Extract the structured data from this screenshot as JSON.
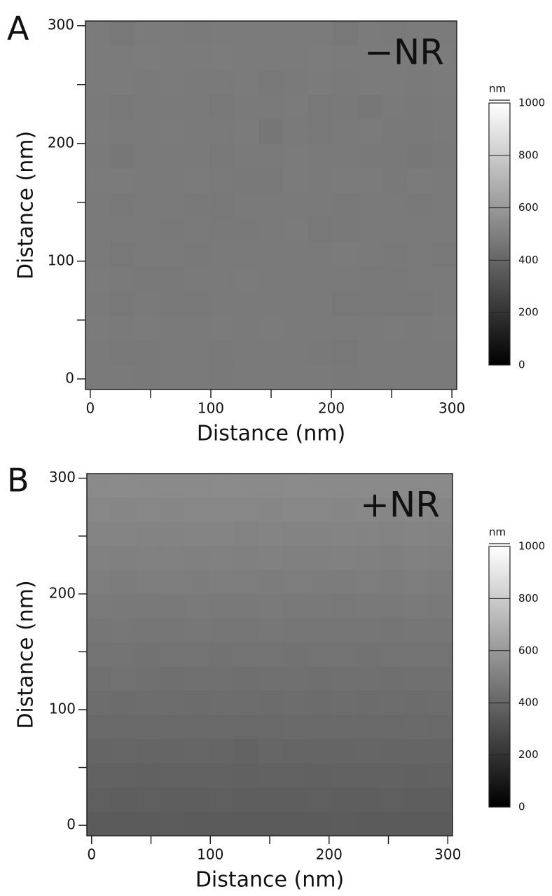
{
  "chart_data": [
    {
      "type": "heatmap",
      "panel_label": "A",
      "annotation": "−NR",
      "xlabel": "Distance (nm)",
      "ylabel": "Distance (nm)",
      "xlim": [
        -4,
        304
      ],
      "ylim": [
        -9,
        304
      ],
      "xticks": [
        0,
        100,
        200,
        300
      ],
      "yticks": [
        0,
        100,
        200,
        300
      ],
      "xminor_ticks": [
        50,
        150,
        250
      ],
      "yminor_ticks": [
        50,
        150,
        250
      ],
      "colorbar_label": "nm",
      "zlim": [
        0,
        1000
      ],
      "zticks": [
        0,
        200,
        400,
        600,
        800,
        1000
      ],
      "z": [
        [
          482,
          470,
          484,
          482,
          480,
          483,
          482,
          481,
          484,
          482,
          472,
          482,
          480,
          482,
          483
        ],
        [
          484,
          482,
          486,
          483,
          482,
          485,
          484,
          482,
          483,
          486,
          484,
          482,
          484,
          483,
          485
        ],
        [
          482,
          481,
          480,
          482,
          478,
          480,
          482,
          476,
          480,
          482,
          480,
          481,
          482,
          480,
          481
        ],
        [
          480,
          470,
          478,
          480,
          480,
          472,
          478,
          480,
          482,
          470,
          474,
          468,
          480,
          476,
          478
        ],
        [
          482,
          480,
          478,
          482,
          480,
          480,
          482,
          462,
          478,
          474,
          480,
          482,
          470,
          472,
          480
        ],
        [
          480,
          468,
          480,
          480,
          478,
          470,
          480,
          480,
          482,
          478,
          480,
          476,
          470,
          468,
          476
        ],
        [
          484,
          482,
          480,
          478,
          482,
          480,
          474,
          474,
          482,
          480,
          481,
          482,
          476,
          484,
          480
        ],
        [
          478,
          476,
          478,
          480,
          476,
          472,
          478,
          480,
          480,
          478,
          476,
          478,
          480,
          476,
          478
        ],
        [
          480,
          478,
          480,
          474,
          478,
          474,
          476,
          480,
          482,
          472,
          476,
          478,
          480,
          478,
          480
        ],
        [
          478,
          470,
          478,
          480,
          476,
          478,
          480,
          480,
          478,
          480,
          482,
          480,
          474,
          478,
          472
        ],
        [
          482,
          480,
          476,
          474,
          478,
          480,
          482,
          480,
          480,
          478,
          480,
          476,
          472,
          478,
          480
        ],
        [
          480,
          472,
          478,
          476,
          474,
          480,
          480,
          478,
          480,
          480,
          472,
          476,
          470,
          470,
          478
        ],
        [
          482,
          480,
          482,
          480,
          478,
          482,
          480,
          482,
          480,
          478,
          480,
          480,
          482,
          480,
          482
        ],
        [
          480,
          476,
          474,
          478,
          480,
          476,
          480,
          478,
          480,
          476,
          472,
          478,
          480,
          478,
          480
        ],
        [
          478,
          480,
          476,
          480,
          478,
          474,
          480,
          478,
          480,
          478,
          474,
          478,
          480,
          478,
          478
        ]
      ]
    },
    {
      "type": "heatmap",
      "panel_label": "B",
      "annotation": "+NR",
      "xlabel": "Distance (nm)",
      "ylabel": "Distance (nm)",
      "xlim": [
        -4,
        304
      ],
      "ylim": [
        -9,
        304
      ],
      "xticks": [
        0,
        100,
        200,
        300
      ],
      "yticks": [
        0,
        100,
        200,
        300
      ],
      "xminor_ticks": [
        50,
        150,
        250
      ],
      "yminor_ticks": [
        50,
        150,
        250
      ],
      "colorbar_label": "nm",
      "zlim": [
        0,
        1000
      ],
      "zticks": [
        0,
        200,
        400,
        600,
        800,
        1000
      ],
      "z": [
        [
          540,
          544,
          542,
          540,
          542,
          544,
          542,
          540,
          544,
          542,
          540,
          542,
          540,
          542,
          540
        ],
        [
          528,
          524,
          530,
          526,
          528,
          530,
          528,
          526,
          530,
          528,
          524,
          528,
          526,
          530,
          526
        ],
        [
          516,
          518,
          512,
          514,
          516,
          518,
          508,
          516,
          514,
          512,
          516,
          514,
          510,
          518,
          514
        ],
        [
          504,
          502,
          506,
          504,
          502,
          506,
          500,
          504,
          502,
          500,
          504,
          500,
          498,
          504,
          502
        ],
        [
          490,
          488,
          492,
          490,
          488,
          490,
          492,
          488,
          490,
          488,
          486,
          490,
          488,
          490,
          488
        ],
        [
          478,
          476,
          474,
          472,
          478,
          476,
          474,
          478,
          476,
          474,
          470,
          474,
          476,
          478,
          476
        ],
        [
          464,
          466,
          462,
          464,
          466,
          464,
          462,
          466,
          464,
          462,
          464,
          462,
          460,
          464,
          462
        ],
        [
          450,
          454,
          448,
          452,
          450,
          448,
          452,
          450,
          448,
          452,
          450,
          448,
          450,
          452,
          450
        ],
        [
          438,
          446,
          440,
          436,
          440,
          438,
          436,
          440,
          438,
          436,
          440,
          438,
          436,
          438,
          440
        ],
        [
          426,
          424,
          428,
          426,
          424,
          426,
          428,
          424,
          426,
          424,
          426,
          424,
          426,
          424,
          426
        ],
        [
          412,
          410,
          414,
          412,
          410,
          412,
          410,
          412,
          414,
          410,
          412,
          410,
          412,
          414,
          410
        ],
        [
          398,
          400,
          396,
          398,
          400,
          396,
          390,
          400,
          398,
          396,
          398,
          400,
          396,
          398,
          396
        ],
        [
          384,
          386,
          382,
          384,
          386,
          384,
          382,
          384,
          386,
          382,
          384,
          386,
          384,
          382,
          384
        ],
        [
          372,
          370,
          372,
          368,
          370,
          372,
          370,
          368,
          370,
          372,
          368,
          370,
          372,
          370,
          368
        ],
        [
          358,
          356,
          358,
          360,
          356,
          358,
          356,
          358,
          356,
          358,
          360,
          356,
          358,
          356,
          358
        ]
      ]
    }
  ]
}
